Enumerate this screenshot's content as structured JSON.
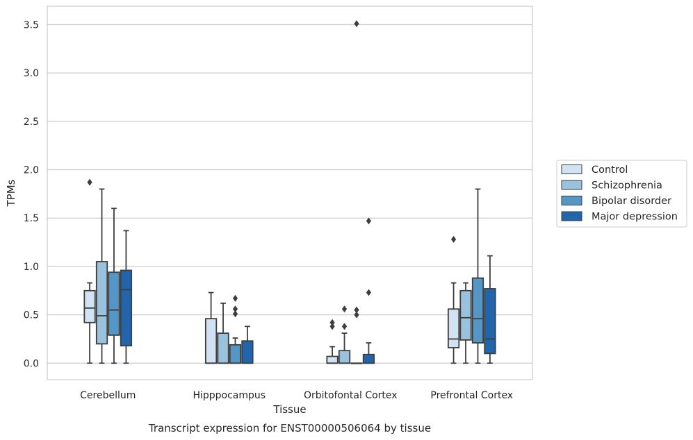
{
  "chart_data": {
    "type": "box",
    "title": "",
    "caption": "Transcript expression for ENST00000506064 by tissue",
    "xlabel": "Tissue",
    "ylabel": "TPMs",
    "ylim": [
      -0.17,
      3.69
    ],
    "yticks": [
      "0.0",
      "0.5",
      "1.0",
      "1.5",
      "2.0",
      "2.5",
      "3.0",
      "3.5"
    ],
    "categories": [
      "Cerebellum",
      "Hipppocampus",
      "Orbitofontal Cortex",
      "Prefrontal Cortex"
    ],
    "legend_position": "right",
    "grid": true,
    "series": [
      {
        "name": "Control",
        "color": "#d1e2f2",
        "boxes": [
          {
            "q1": 0.42,
            "median": 0.57,
            "q3": 0.75,
            "whislo": 0.0,
            "whishi": 0.83,
            "fliers": [
              1.87
            ]
          },
          {
            "q1": 0.0,
            "median": 0.0,
            "q3": 0.46,
            "whislo": 0.0,
            "whishi": 0.73,
            "fliers": []
          },
          {
            "q1": 0.0,
            "median": 0.0,
            "q3": 0.07,
            "whislo": 0.0,
            "whishi": 0.17,
            "fliers": [
              0.38,
              0.42
            ]
          },
          {
            "q1": 0.16,
            "median": 0.25,
            "q3": 0.56,
            "whislo": 0.0,
            "whishi": 0.83,
            "fliers": [
              1.28
            ]
          }
        ]
      },
      {
        "name": "Schizophrenia",
        "color": "#9ac2dc",
        "boxes": [
          {
            "q1": 0.2,
            "median": 0.49,
            "q3": 1.05,
            "whislo": 0.0,
            "whishi": 1.8,
            "fliers": []
          },
          {
            "q1": 0.0,
            "median": 0.0,
            "q3": 0.31,
            "whislo": 0.0,
            "whishi": 0.62,
            "fliers": []
          },
          {
            "q1": 0.0,
            "median": 0.0,
            "q3": 0.13,
            "whislo": 0.0,
            "whishi": 0.31,
            "fliers": [
              0.38,
              0.56
            ]
          },
          {
            "q1": 0.24,
            "median": 0.47,
            "q3": 0.75,
            "whislo": 0.0,
            "whishi": 0.83,
            "fliers": []
          }
        ]
      },
      {
        "name": "Bipolar disorder",
        "color": "#5497c6",
        "boxes": [
          {
            "q1": 0.29,
            "median": 0.55,
            "q3": 0.94,
            "whislo": 0.0,
            "whishi": 1.6,
            "fliers": []
          },
          {
            "q1": 0.0,
            "median": 0.0,
            "q3": 0.19,
            "whislo": 0.0,
            "whishi": 0.26,
            "fliers": [
              0.51,
              0.56,
              0.67
            ]
          },
          {
            "q1": 0.0,
            "median": 0.0,
            "q3": 0.0,
            "whislo": 0.0,
            "whishi": 0.0,
            "fliers": [
              0.5,
              0.55,
              3.51
            ]
          },
          {
            "q1": 0.21,
            "median": 0.46,
            "q3": 0.88,
            "whislo": 0.0,
            "whishi": 1.8,
            "fliers": []
          }
        ]
      },
      {
        "name": "Major depression",
        "color": "#2166ac",
        "boxes": [
          {
            "q1": 0.18,
            "median": 0.76,
            "q3": 0.96,
            "whislo": 0.0,
            "whishi": 1.37,
            "fliers": []
          },
          {
            "q1": 0.0,
            "median": 0.0,
            "q3": 0.23,
            "whislo": 0.0,
            "whishi": 0.38,
            "fliers": []
          },
          {
            "q1": 0.0,
            "median": 0.0,
            "q3": 0.09,
            "whislo": 0.0,
            "whishi": 0.21,
            "fliers": [
              0.73,
              1.47
            ]
          },
          {
            "q1": 0.1,
            "median": 0.25,
            "q3": 0.77,
            "whislo": 0.0,
            "whishi": 1.11,
            "fliers": []
          }
        ]
      }
    ]
  }
}
